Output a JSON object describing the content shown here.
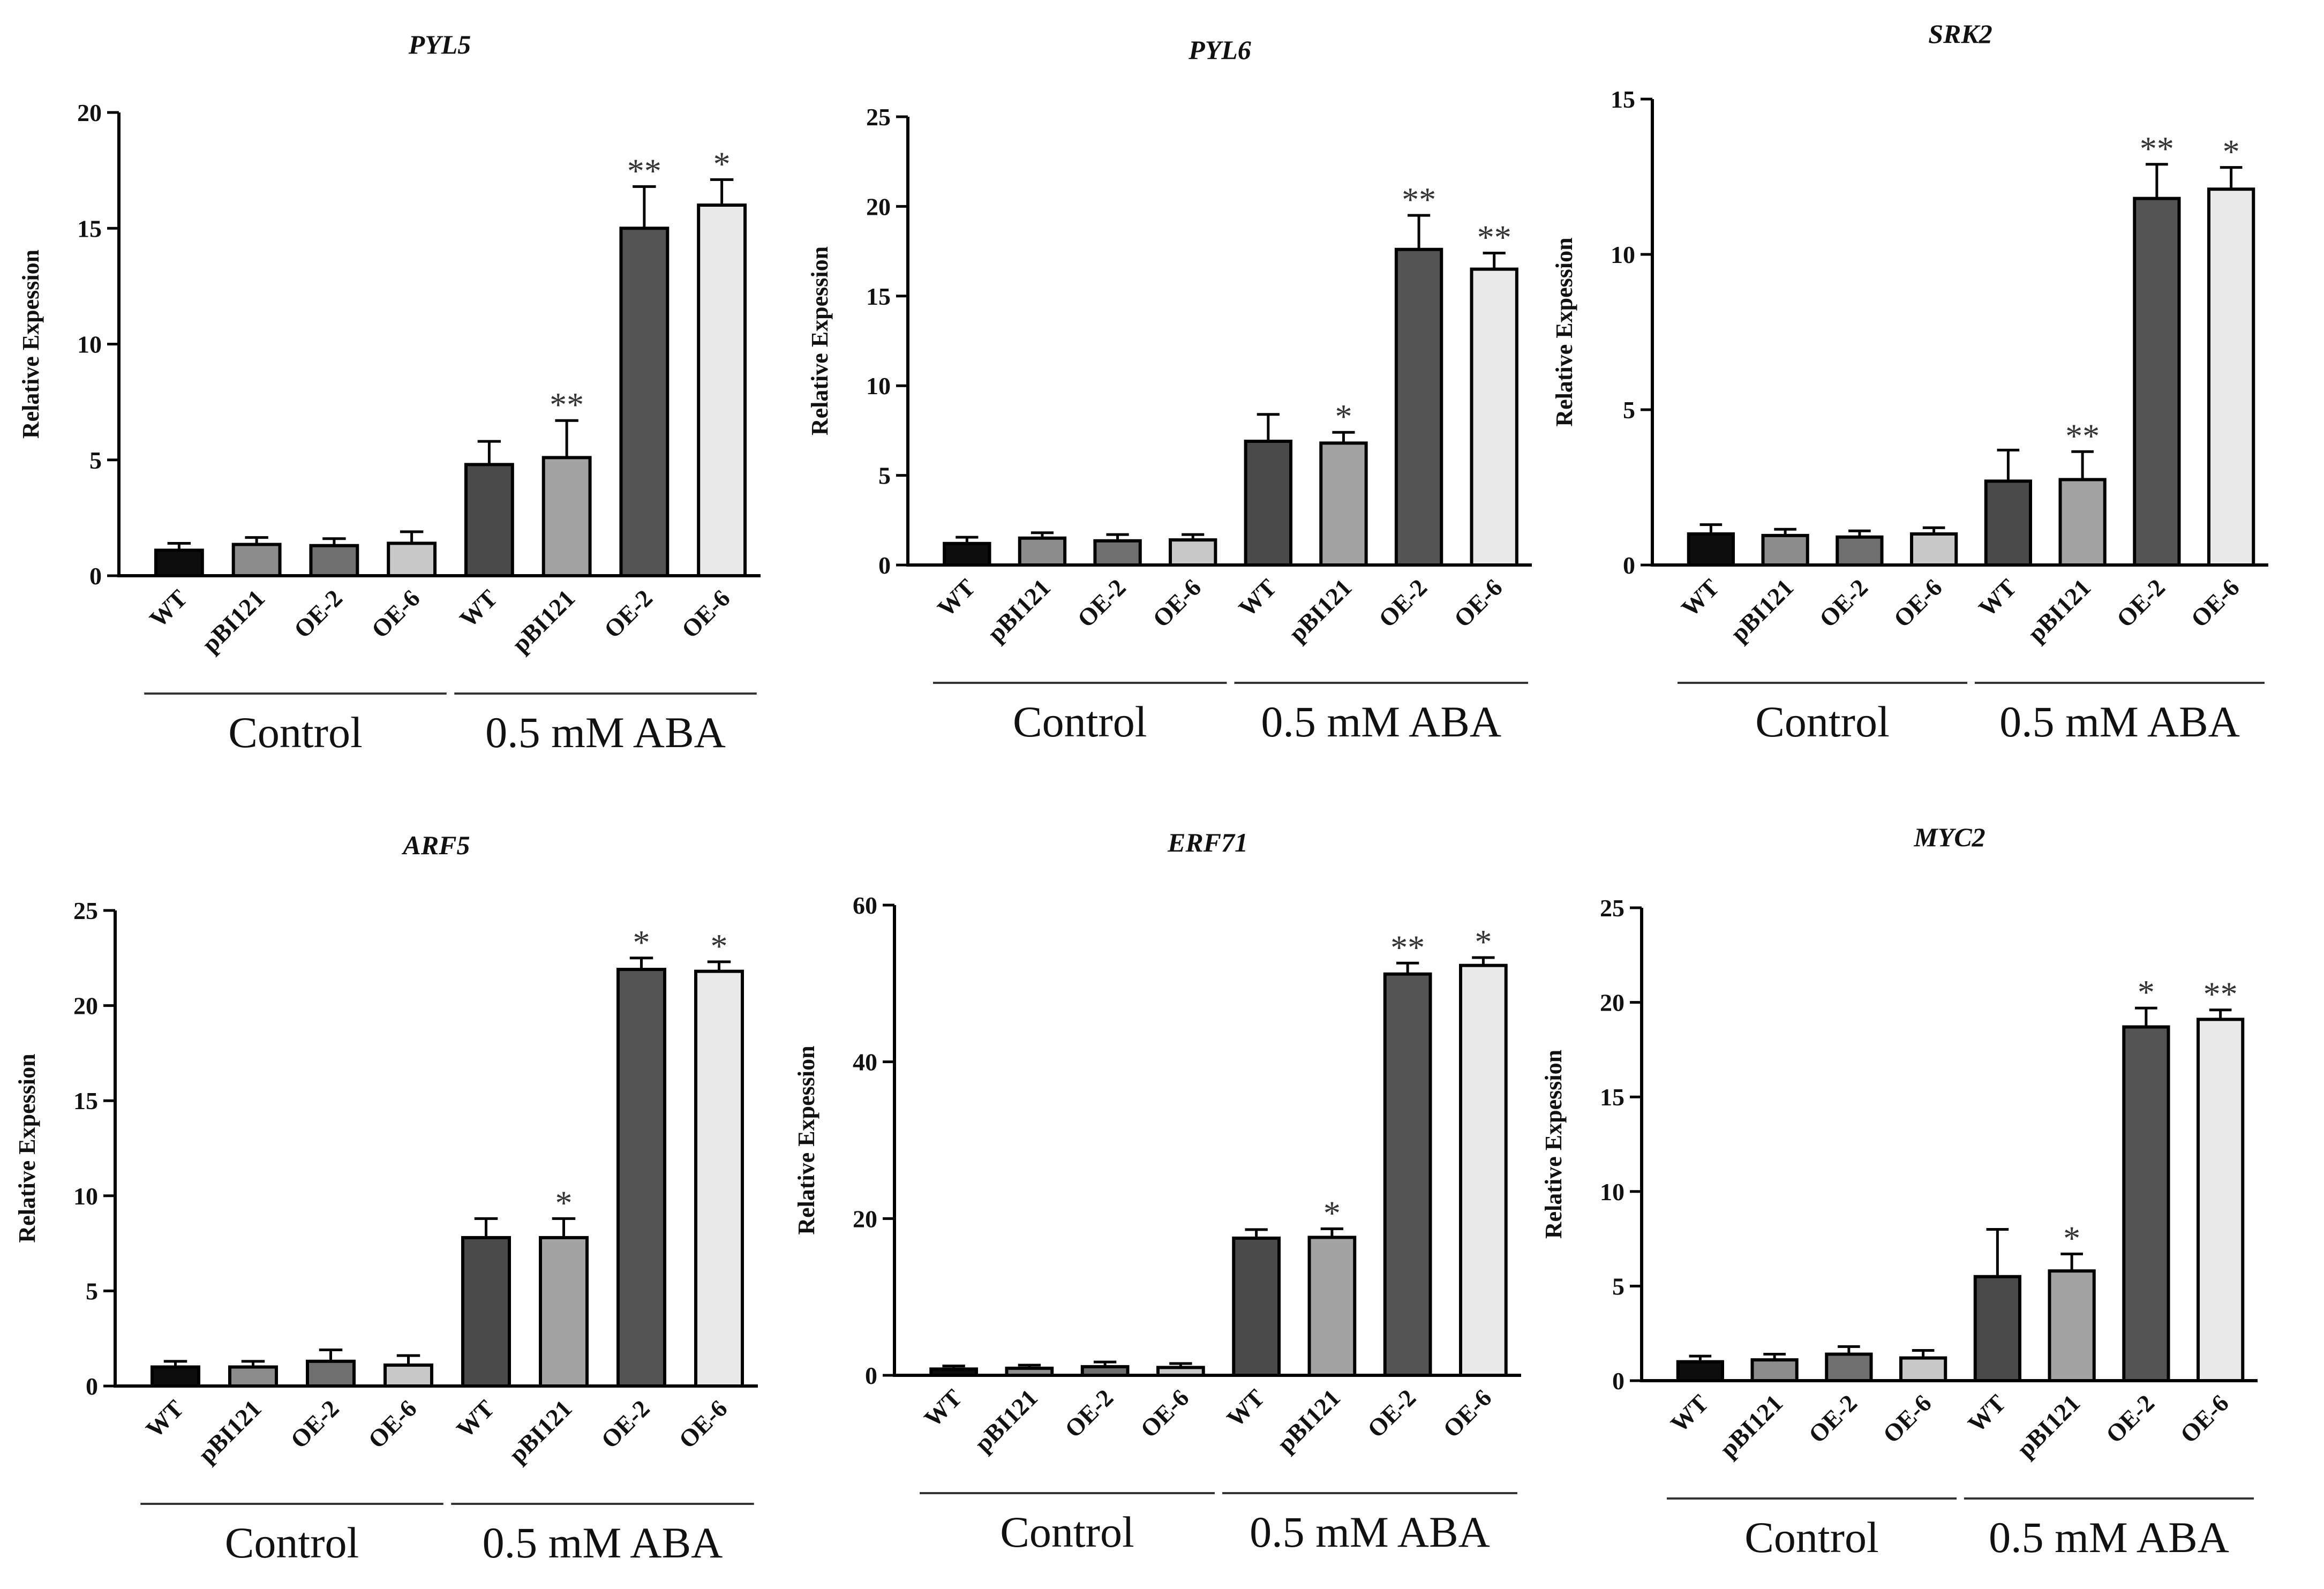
{
  "chart_data": [
    {
      "type": "bar",
      "title": "PYL5",
      "ylabel": "Relative Expession",
      "ylim": [
        0,
        20
      ],
      "yticks": [
        0,
        5,
        10,
        15,
        20
      ],
      "categories": [
        "WT",
        "pBI121",
        "OE-2",
        "OE-6",
        "WT",
        "pBI121",
        "OE-2",
        "OE-6"
      ],
      "values": [
        1.1,
        1.35,
        1.3,
        1.4,
        4.8,
        5.1,
        15.0,
        16.0
      ],
      "errors": [
        0.3,
        0.3,
        0.3,
        0.5,
        1.0,
        1.6,
        1.8,
        1.1
      ],
      "significance": [
        "",
        "",
        "",
        "",
        "",
        "**",
        "**",
        "*"
      ],
      "groups": [
        {
          "label": "Control",
          "start": 0,
          "end": 3
        },
        {
          "label": "0.5 mM ABA",
          "start": 4,
          "end": 7
        }
      ],
      "colors": [
        "#0d0d0d",
        "#8c8c8c",
        "#6f6f6f",
        "#c8c8c8",
        "#4a4a4a",
        "#a3a3a3",
        "#545454",
        "#e9e9e9"
      ]
    },
    {
      "type": "bar",
      "title": "PYL6",
      "ylabel": "Relative Expession",
      "ylim": [
        0,
        25
      ],
      "yticks": [
        0,
        5,
        10,
        15,
        20,
        25
      ],
      "categories": [
        "WT",
        "pBI121",
        "OE-2",
        "OE-6",
        "WT",
        "pBI121",
        "OE-2",
        "OE-6"
      ],
      "values": [
        1.2,
        1.5,
        1.35,
        1.4,
        6.9,
        6.8,
        17.6,
        16.5
      ],
      "errors": [
        0.35,
        0.3,
        0.35,
        0.3,
        1.5,
        0.6,
        1.9,
        0.9
      ],
      "significance": [
        "",
        "",
        "",
        "",
        "",
        "*",
        "**",
        "**"
      ],
      "groups": [
        {
          "label": "Control",
          "start": 0,
          "end": 3
        },
        {
          "label": "0.5 mM ABA",
          "start": 4,
          "end": 7
        }
      ],
      "colors": [
        "#0d0d0d",
        "#8c8c8c",
        "#6f6f6f",
        "#c8c8c8",
        "#4a4a4a",
        "#a3a3a3",
        "#545454",
        "#e9e9e9"
      ]
    },
    {
      "type": "bar",
      "title": "SRK2",
      "ylabel": "Relative Expession",
      "ylim": [
        0,
        15
      ],
      "yticks": [
        0,
        5,
        10,
        15
      ],
      "categories": [
        "WT",
        "pBI121",
        "OE-2",
        "OE-6",
        "WT",
        "pBI121",
        "OE-2",
        "OE-6"
      ],
      "values": [
        1.0,
        0.95,
        0.9,
        1.0,
        2.7,
        2.75,
        11.8,
        12.1
      ],
      "errors": [
        0.3,
        0.2,
        0.2,
        0.2,
        1.0,
        0.9,
        1.1,
        0.7
      ],
      "significance": [
        "",
        "",
        "",
        "",
        "",
        "**",
        "**",
        "*"
      ],
      "groups": [
        {
          "label": "Control",
          "start": 0,
          "end": 3
        },
        {
          "label": "0.5 mM ABA",
          "start": 4,
          "end": 7
        }
      ],
      "colors": [
        "#0d0d0d",
        "#8c8c8c",
        "#6f6f6f",
        "#c8c8c8",
        "#4a4a4a",
        "#a3a3a3",
        "#545454",
        "#e9e9e9"
      ]
    },
    {
      "type": "bar",
      "title": "ARF5",
      "ylabel": "Relative Expession",
      "ylim": [
        0,
        25
      ],
      "yticks": [
        0,
        5,
        10,
        15,
        20,
        25
      ],
      "categories": [
        "WT",
        "pBI121",
        "OE-2",
        "OE-6",
        "WT",
        "pBI121",
        "OE-2",
        "OE-6"
      ],
      "values": [
        1.0,
        1.0,
        1.3,
        1.1,
        7.8,
        7.8,
        21.9,
        21.8
      ],
      "errors": [
        0.3,
        0.3,
        0.6,
        0.5,
        1.0,
        1.0,
        0.6,
        0.5
      ],
      "significance": [
        "",
        "",
        "",
        "",
        "",
        "*",
        "*",
        "*"
      ],
      "groups": [
        {
          "label": "Control",
          "start": 0,
          "end": 3
        },
        {
          "label": "0.5 mM ABA",
          "start": 4,
          "end": 7
        }
      ],
      "colors": [
        "#0d0d0d",
        "#8c8c8c",
        "#6f6f6f",
        "#c8c8c8",
        "#4a4a4a",
        "#a3a3a3",
        "#545454",
        "#e9e9e9"
      ]
    },
    {
      "type": "bar",
      "title": "ERF71",
      "ylabel": "Relative Expession",
      "ylim": [
        0,
        60
      ],
      "yticks": [
        0,
        20,
        40,
        60
      ],
      "categories": [
        "WT",
        "pBI121",
        "OE-2",
        "OE-6",
        "WT",
        "pBI121",
        "OE-2",
        "OE-6"
      ],
      "values": [
        0.8,
        0.9,
        1.1,
        1.0,
        17.5,
        17.6,
        51.2,
        52.3
      ],
      "errors": [
        0.4,
        0.4,
        0.6,
        0.5,
        1.1,
        1.1,
        1.4,
        1.0
      ],
      "significance": [
        "",
        "",
        "",
        "",
        "",
        "*",
        "**",
        "*"
      ],
      "groups": [
        {
          "label": "Control",
          "start": 0,
          "end": 3
        },
        {
          "label": "0.5 mM ABA",
          "start": 4,
          "end": 7
        }
      ],
      "colors": [
        "#0d0d0d",
        "#8c8c8c",
        "#6f6f6f",
        "#c8c8c8",
        "#4a4a4a",
        "#a3a3a3",
        "#545454",
        "#e9e9e9"
      ]
    },
    {
      "type": "bar",
      "title": "MYC2",
      "ylabel": "Relative Expession",
      "ylim": [
        0,
        25
      ],
      "yticks": [
        0,
        5,
        10,
        15,
        20,
        25
      ],
      "categories": [
        "WT",
        "pBI121",
        "OE-2",
        "OE-6",
        "WT",
        "pBI121",
        "OE-2",
        "OE-6"
      ],
      "values": [
        1.0,
        1.1,
        1.4,
        1.2,
        5.5,
        5.8,
        18.7,
        19.1
      ],
      "errors": [
        0.3,
        0.3,
        0.4,
        0.4,
        2.5,
        0.9,
        1.0,
        0.5
      ],
      "significance": [
        "",
        "",
        "",
        "",
        "",
        "*",
        "*",
        "**"
      ],
      "groups": [
        {
          "label": "Control",
          "start": 0,
          "end": 3
        },
        {
          "label": "0.5 mM ABA",
          "start": 4,
          "end": 7
        }
      ],
      "colors": [
        "#0d0d0d",
        "#8c8c8c",
        "#6f6f6f",
        "#c8c8c8",
        "#4a4a4a",
        "#a3a3a3",
        "#545454",
        "#e9e9e9"
      ]
    }
  ]
}
